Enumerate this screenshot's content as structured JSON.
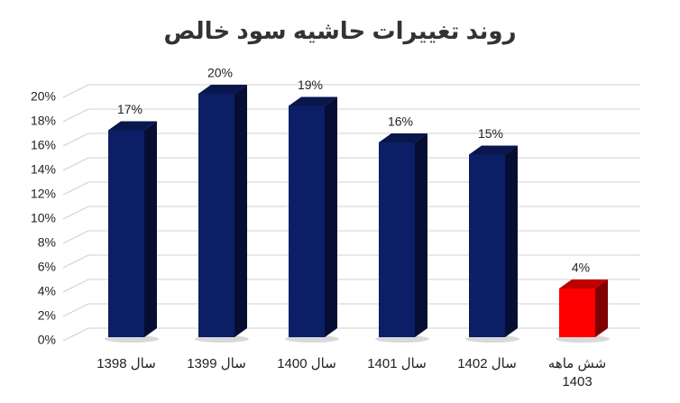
{
  "chart_data": {
    "type": "bar3d",
    "title": "روند تغییرات حاشیه سود خالص",
    "categories": [
      "سال 1398",
      "سال 1399",
      "سال 1400",
      "سال 1401",
      "سال 1402",
      "شش ماهه 1403"
    ],
    "values": [
      17,
      20,
      19,
      16,
      15,
      4
    ],
    "value_labels": [
      "17%",
      "20%",
      "19%",
      "16%",
      "15%",
      "4%"
    ],
    "colors": [
      "#0c1f66",
      "#0c1f66",
      "#0c1f66",
      "#0c1f66",
      "#0c1f66",
      "#ff0000"
    ],
    "ylim": [
      0,
      20
    ],
    "yticks": [
      {
        "value": 0,
        "label": "0%"
      },
      {
        "value": 2,
        "label": "2%"
      },
      {
        "value": 4,
        "label": "4%"
      },
      {
        "value": 6,
        "label": "6%"
      },
      {
        "value": 8,
        "label": "8%"
      },
      {
        "value": 10,
        "label": "10%"
      },
      {
        "value": 12,
        "label": "12%"
      },
      {
        "value": 14,
        "label": "14%"
      },
      {
        "value": 16,
        "label": "16%"
      },
      {
        "value": 18,
        "label": "18%"
      },
      {
        "value": 20,
        "label": "20%"
      }
    ],
    "grid": true
  }
}
